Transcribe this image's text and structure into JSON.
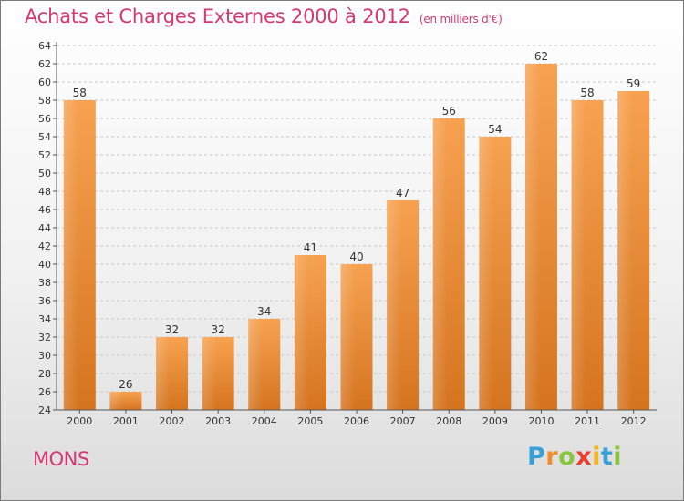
{
  "chart_data": {
    "type": "bar",
    "title": "Achats et Charges Externes 2000 à 2012",
    "subtitle": "(en milliers d'€)",
    "categories": [
      "2000",
      "2001",
      "2002",
      "2003",
      "2004",
      "2005",
      "2006",
      "2007",
      "2008",
      "2009",
      "2010",
      "2011",
      "2012"
    ],
    "values": [
      58,
      26,
      32,
      32,
      34,
      41,
      40,
      47,
      56,
      54,
      62,
      58,
      59
    ],
    "ylim": [
      24,
      64
    ],
    "ytick_step": 2,
    "grid": "horizontal-dashed",
    "bar_color": "#f2964a"
  },
  "footer": {
    "label": "MONS",
    "logo_letters": [
      {
        "ch": "P",
        "color": "#3aa0d8"
      },
      {
        "ch": "r",
        "color": "#f08c2a"
      },
      {
        "ch": "o",
        "color": "#8bc53f"
      },
      {
        "ch": "x",
        "color": "#e8402f"
      },
      {
        "ch": "i",
        "color": "#f2b51c"
      },
      {
        "ch": "t",
        "color": "#3aa0d8"
      },
      {
        "ch": "i",
        "color": "#8bc53f"
      }
    ]
  },
  "colors": {
    "title": "#d43a70",
    "axis": "#555555",
    "grid": "#c8c8c8"
  }
}
